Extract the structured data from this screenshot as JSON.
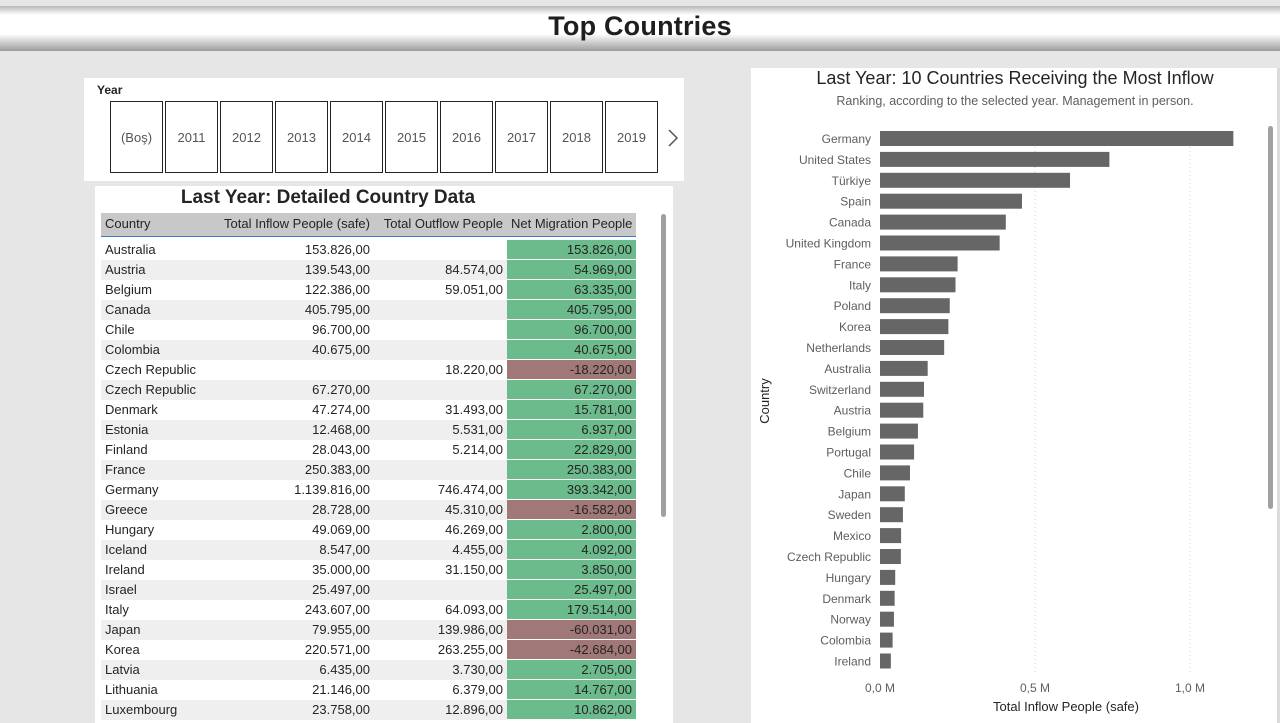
{
  "page": {
    "title": "Top Countries"
  },
  "slicer": {
    "title": "Year",
    "options": [
      "(Boş)",
      "2011",
      "2012",
      "2013",
      "2014",
      "2015",
      "2016",
      "2017",
      "2018",
      "2019"
    ],
    "next_icon": "chevron-right-icon"
  },
  "table": {
    "title": "Last Year: Detailed Country Data",
    "columns": [
      "Country",
      "Total Inflow People (safe)",
      "Total Outflow People",
      "Net Migration People"
    ],
    "rows": [
      [
        "Australia",
        "153.826,00",
        "",
        "153.826,00"
      ],
      [
        "Austria",
        "139.543,00",
        "84.574,00",
        "54.969,00"
      ],
      [
        "Belgium",
        "122.386,00",
        "59.051,00",
        "63.335,00"
      ],
      [
        "Canada",
        "405.795,00",
        "",
        "405.795,00"
      ],
      [
        "Chile",
        "96.700,00",
        "",
        "96.700,00"
      ],
      [
        "Colombia",
        "40.675,00",
        "",
        "40.675,00"
      ],
      [
        "Czech Republic",
        "",
        "18.220,00",
        "-18.220,00"
      ],
      [
        "Czech Republic",
        "67.270,00",
        "",
        "67.270,00"
      ],
      [
        "Denmark",
        "47.274,00",
        "31.493,00",
        "15.781,00"
      ],
      [
        "Estonia",
        "12.468,00",
        "5.531,00",
        "6.937,00"
      ],
      [
        "Finland",
        "28.043,00",
        "5.214,00",
        "22.829,00"
      ],
      [
        "France",
        "250.383,00",
        "",
        "250.383,00"
      ],
      [
        "Germany",
        "1.139.816,00",
        "746.474,00",
        "393.342,00"
      ],
      [
        "Greece",
        "28.728,00",
        "45.310,00",
        "-16.582,00"
      ],
      [
        "Hungary",
        "49.069,00",
        "46.269,00",
        "2.800,00"
      ],
      [
        "Iceland",
        "8.547,00",
        "4.455,00",
        "4.092,00"
      ],
      [
        "Ireland",
        "35.000,00",
        "31.150,00",
        "3.850,00"
      ],
      [
        "Israel",
        "25.497,00",
        "",
        "25.497,00"
      ],
      [
        "Italy",
        "243.607,00",
        "64.093,00",
        "179.514,00"
      ],
      [
        "Japan",
        "79.955,00",
        "139.986,00",
        "-60.031,00"
      ],
      [
        "Korea",
        "220.571,00",
        "263.255,00",
        "-42.684,00"
      ],
      [
        "Latvia",
        "6.435,00",
        "3.730,00",
        "2.705,00"
      ],
      [
        "Lithuania",
        "21.146,00",
        "6.379,00",
        "14.767,00"
      ],
      [
        "Luxembourg",
        "23.758,00",
        "12.896,00",
        "10.862,00"
      ]
    ],
    "colors": {
      "positive": "#6bbb8d",
      "negative": "#a17878"
    }
  },
  "chart_data": {
    "type": "bar",
    "orientation": "horizontal",
    "title": "Last Year: 10 Countries Receiving the Most Inflow",
    "subtitle": "Ranking, according to the selected year. Management in person.",
    "xlabel": "Total Inflow People (safe)",
    "ylabel": "Country",
    "categories": [
      "Germany",
      "United States",
      "Türkiye",
      "Spain",
      "Canada",
      "United Kingdom",
      "France",
      "Italy",
      "Poland",
      "Korea",
      "Netherlands",
      "Australia",
      "Switzerland",
      "Austria",
      "Belgium",
      "Portugal",
      "Chile",
      "Japan",
      "Sweden",
      "Mexico",
      "Czech Republic",
      "Hungary",
      "Denmark",
      "Norway",
      "Colombia",
      "Ireland"
    ],
    "values": [
      1139816,
      740000,
      613000,
      458000,
      405795,
      386000,
      250383,
      243607,
      225000,
      220571,
      207000,
      153826,
      142000,
      139543,
      122386,
      110000,
      96700,
      79955,
      74000,
      68000,
      67270,
      49069,
      47274,
      45000,
      40675,
      35000
    ],
    "xticks": [
      "0,0 M",
      "0,5 M",
      "1,0 M"
    ],
    "xtick_values": [
      0,
      500000,
      1000000
    ],
    "xlim": [
      0,
      1200000
    ],
    "bar_color": "#666666",
    "grid": "vertical-dotted"
  }
}
